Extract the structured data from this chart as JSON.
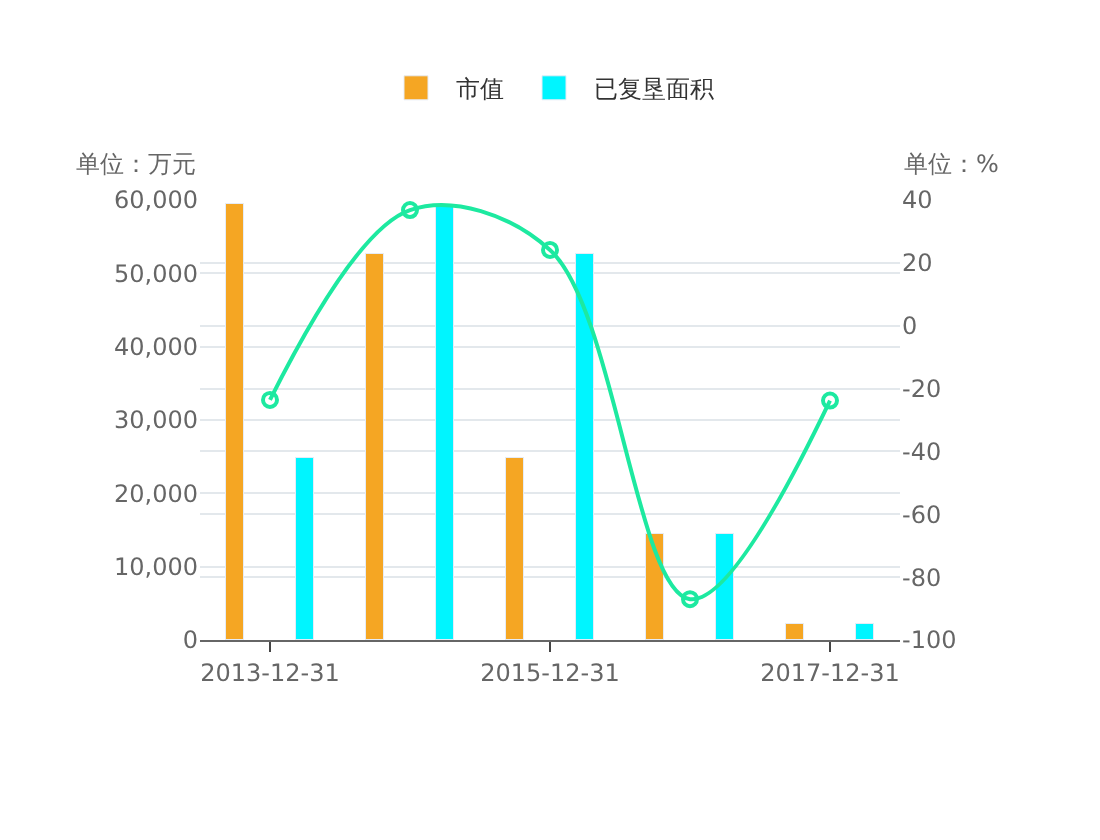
{
  "chart_data": {
    "type": "bar",
    "categories": [
      "2013-12-31",
      null,
      "2015-12-31",
      null,
      "2017-12-31"
    ],
    "ylabel": "单位：万元",
    "y2label": "单位：%",
    "series": [
      {
        "name": "市值",
        "color": "#f5a623",
        "values": [
          59400,
          52700,
          24800,
          14400,
          2300
        ]
      },
      {
        "name": "已复垦面积",
        "color": "#00f5ff",
        "values": [
          24800,
          59300,
          52700,
          14400,
          2300
        ]
      },
      {
        "type": "line",
        "axis": "y2",
        "color": "#1de9a0",
        "values": [
          -23.6,
          36.8,
          24.1,
          -87,
          -23.8
        ],
        "marker": "circle"
      }
    ],
    "ylim": [
      0,
      60000
    ],
    "yticks": [
      0,
      {
        "value": 10000,
        "label": "10,000"
      },
      {
        "value": 20000,
        "label": "20,000"
      },
      {
        "value": 30000,
        "label": "30,000"
      },
      {
        "value": 40000,
        "label": "40,000"
      },
      {
        "value": 50000,
        "label": "50,000"
      },
      {
        "value": 60000,
        "label": "60,000"
      }
    ],
    "y2lim": [
      -100,
      40
    ],
    "y2ticks": [
      -100,
      -80,
      -60,
      -40,
      -20,
      0,
      20,
      40
    ],
    "grid": true,
    "legend": "top"
  }
}
